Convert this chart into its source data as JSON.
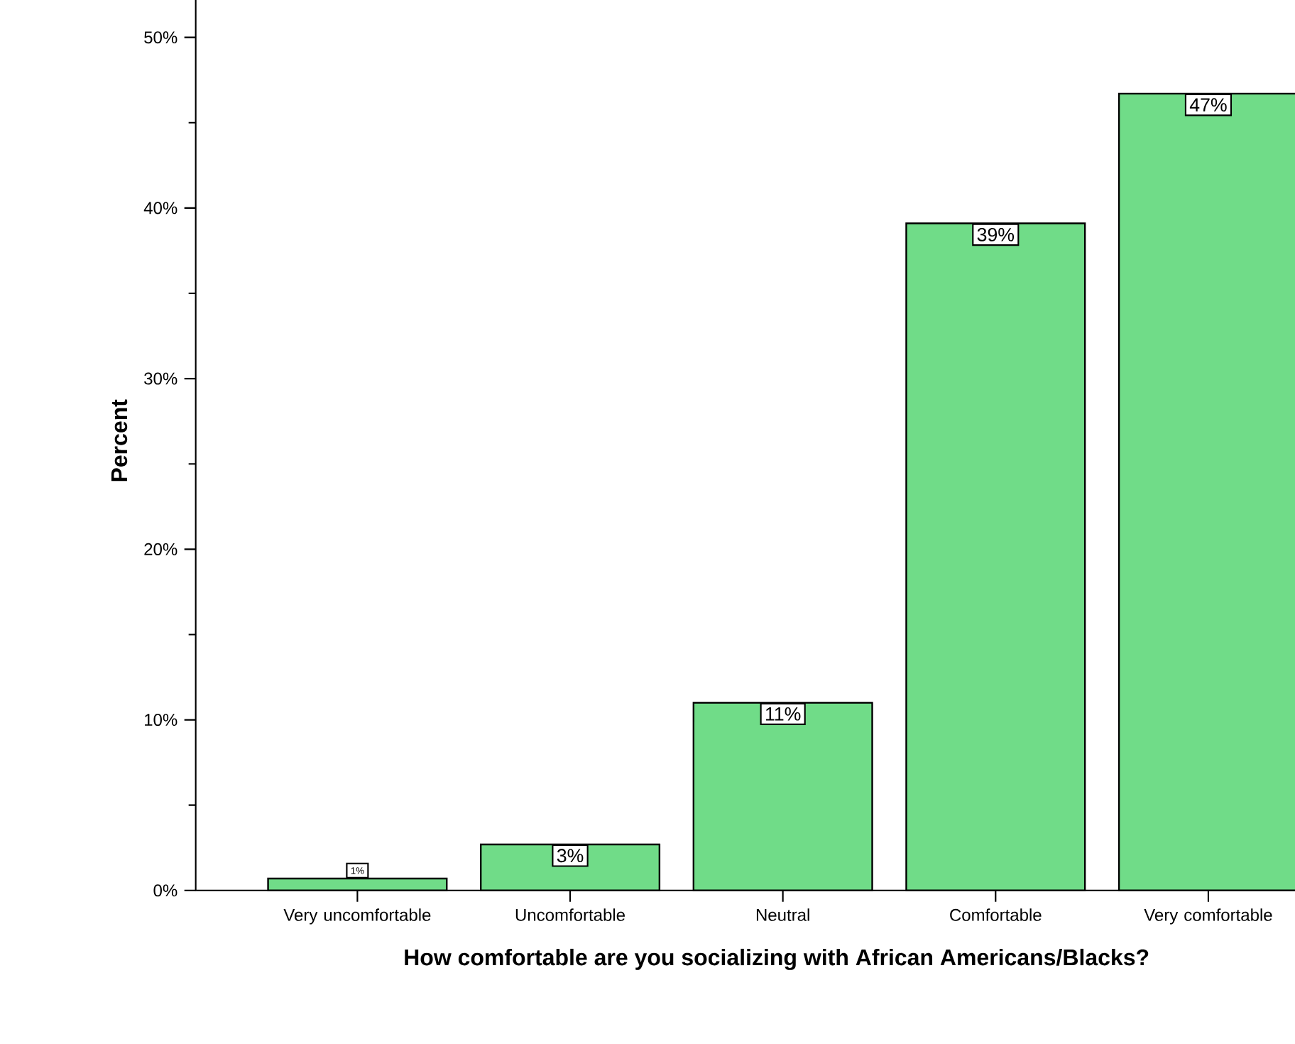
{
  "chart_data": {
    "type": "bar",
    "xlabel": "How comfortable are you socializing with African Americans/Blacks?",
    "ylabel": "Percent",
    "categories": [
      "Very uncomfortable",
      "Uncomfortable",
      "Neutral",
      "Comfortable",
      "Very comfortable"
    ],
    "values": [
      0.7,
      2.7,
      11.0,
      39.1,
      46.7
    ],
    "value_labels": [
      "1%",
      "3%",
      "11%",
      "39%",
      "47%"
    ],
    "color": "#70dc88",
    "ylim": [
      0,
      52.7
    ],
    "yticks": [
      {
        "value": 0,
        "label": "0%"
      },
      {
        "value": 5,
        "label": null
      },
      {
        "value": 10,
        "label": "10%"
      },
      {
        "value": 15,
        "label": null
      },
      {
        "value": 20,
        "label": "20%"
      },
      {
        "value": 25,
        "label": null
      },
      {
        "value": 30,
        "label": "30%"
      },
      {
        "value": 35,
        "label": null
      },
      {
        "value": 40,
        "label": "40%"
      },
      {
        "value": 45,
        "label": null
      },
      {
        "value": 50,
        "label": "50%"
      }
    ],
    "grid": false
  }
}
